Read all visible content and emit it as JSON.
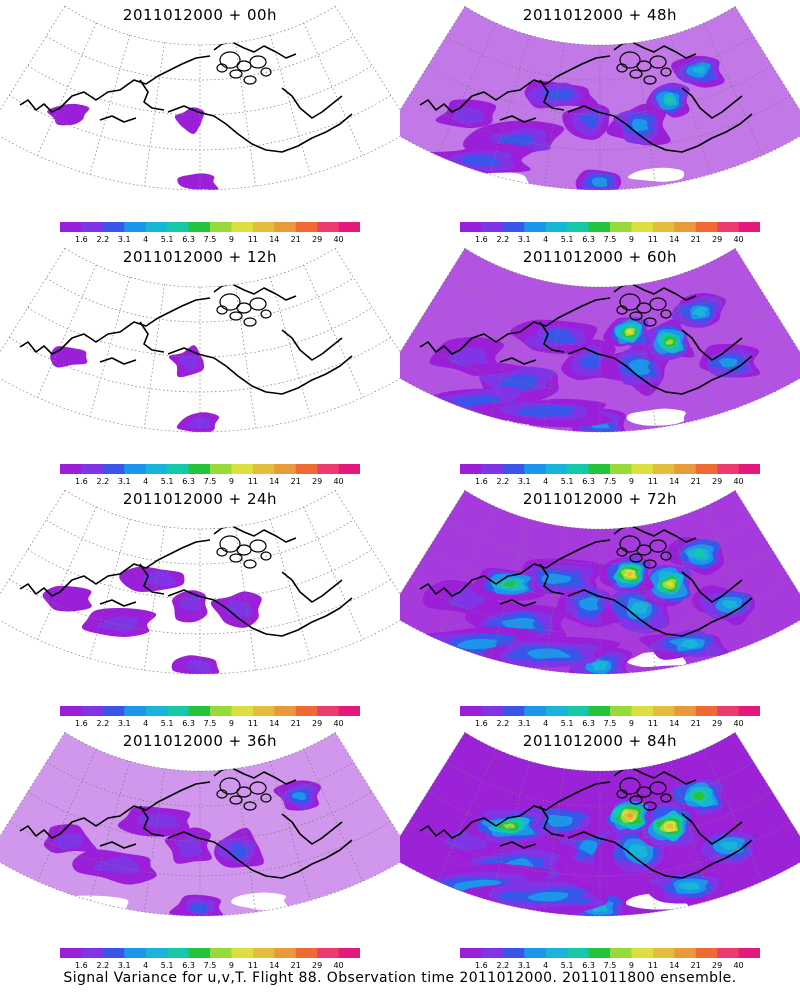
{
  "figure": {
    "caption": "Signal Variance for u,v,T. Flight 88. Observation time 2011012000. 2011011800 ensemble."
  },
  "colorbar": {
    "tick_labels": [
      "1.6",
      "2.2",
      "3.1",
      "4",
      "5.1",
      "6.3",
      "7.5",
      "9",
      "11",
      "14",
      "21",
      "29",
      "40"
    ],
    "colors": [
      "#9b1fd8",
      "#7f35e6",
      "#3a55ea",
      "#1c95ea",
      "#19b5d8",
      "#16c8a8",
      "#23c43a",
      "#98d93b",
      "#dbe040",
      "#e3bd3c",
      "#ea9a3a",
      "#ef6a33",
      "#ec3b6e",
      "#e5197c"
    ]
  },
  "map_colors": {
    "background_purple": "#9b1fd8",
    "coast": "#000000",
    "grid": "#7a7a7a"
  },
  "panels": [
    {
      "title": "2011012000 + 00h",
      "lead_hours": 0,
      "intensity": 0.08
    },
    {
      "title": "2011012000 + 48h",
      "lead_hours": 48,
      "intensity": 0.55
    },
    {
      "title": "2011012000 + 12h",
      "lead_hours": 12,
      "intensity": 0.18
    },
    {
      "title": "2011012000 + 60h",
      "lead_hours": 60,
      "intensity": 0.7
    },
    {
      "title": "2011012000 + 24h",
      "lead_hours": 24,
      "intensity": 0.3
    },
    {
      "title": "2011012000 + 72h",
      "lead_hours": 72,
      "intensity": 0.8
    },
    {
      "title": "2011012000 + 36h",
      "lead_hours": 36,
      "intensity": 0.42
    },
    {
      "title": "2011012000 + 84h",
      "lead_hours": 84,
      "intensity": 0.9
    }
  ]
}
